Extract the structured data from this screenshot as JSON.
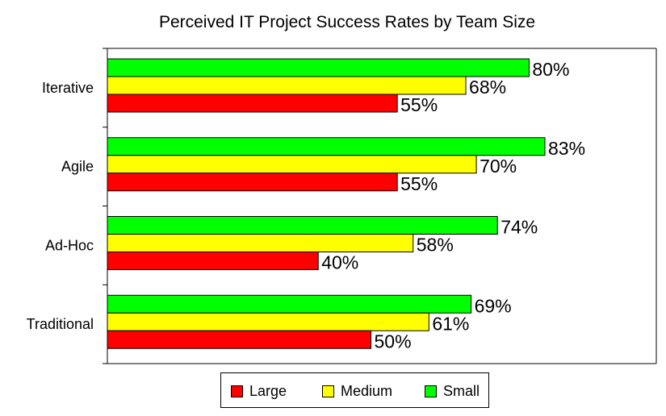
{
  "chart_data": {
    "type": "bar",
    "orientation": "horizontal",
    "title": "Perceived IT Project Success Rates by Team Size",
    "categories": [
      "Iterative",
      "Agile",
      "Ad-Hoc",
      "Traditional"
    ],
    "series": [
      {
        "name": "Small",
        "color": "#00ff00",
        "values": [
          80,
          83,
          74,
          69
        ]
      },
      {
        "name": "Medium",
        "color": "#ffff00",
        "values": [
          68,
          70,
          58,
          61
        ]
      },
      {
        "name": "Large",
        "color": "#ff0000",
        "values": [
          55,
          55,
          40,
          50
        ]
      }
    ],
    "value_suffix": "%",
    "xlim": [
      0,
      100
    ],
    "legend": {
      "placement": "bottom",
      "entries": [
        {
          "name": "Large",
          "color": "#ff0000"
        },
        {
          "name": "Medium",
          "color": "#ffff00"
        },
        {
          "name": "Small",
          "color": "#00ff00"
        }
      ]
    },
    "grid": false
  }
}
